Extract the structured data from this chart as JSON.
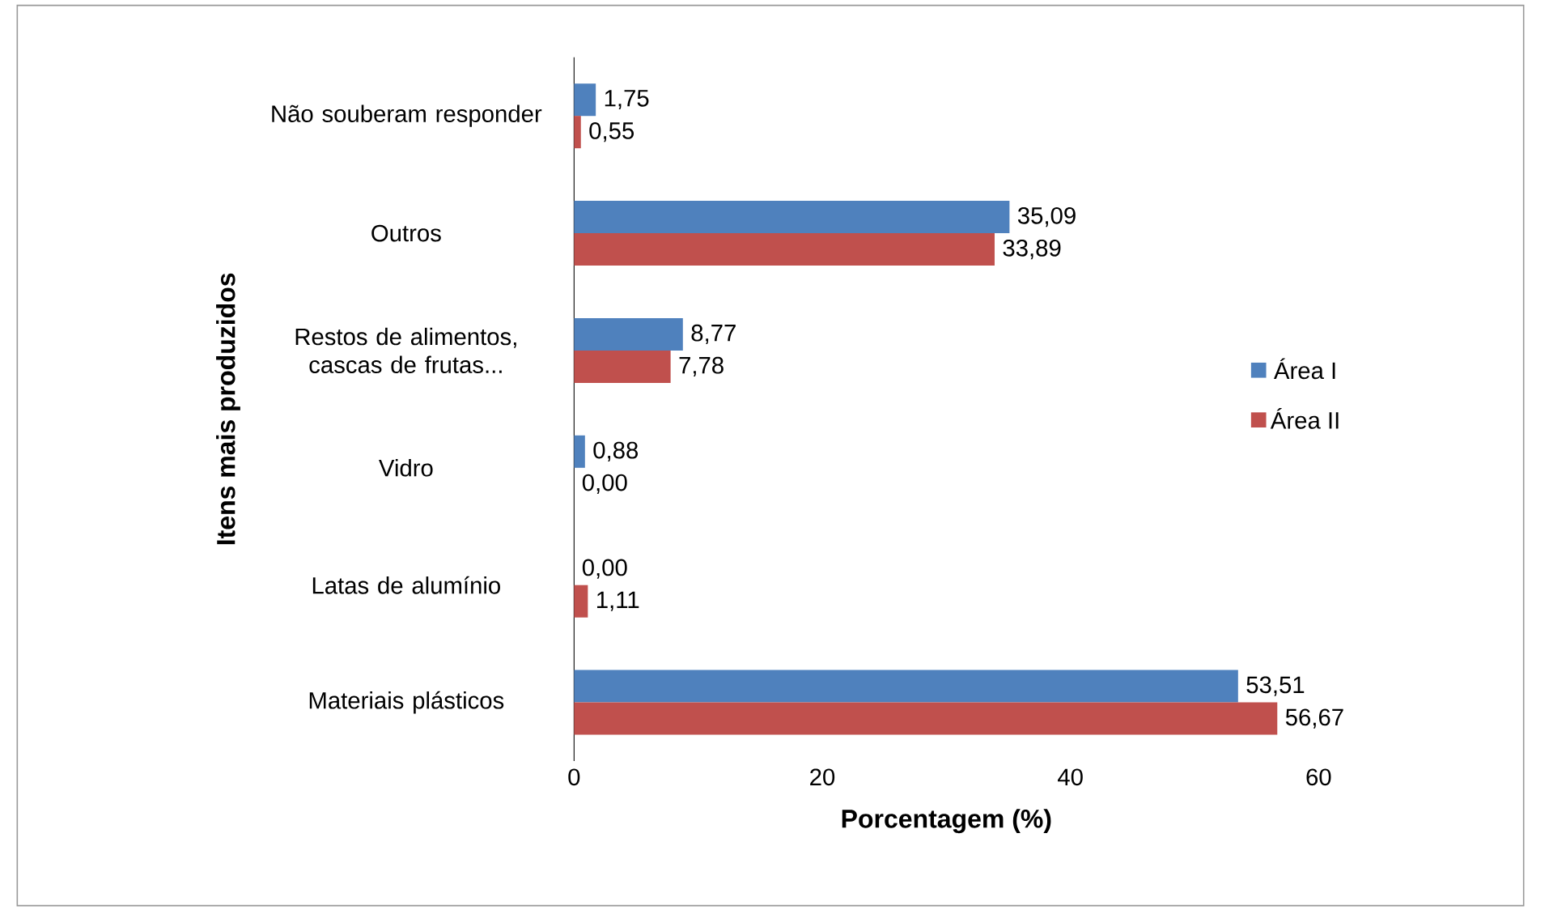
{
  "chart_data": {
    "type": "bar",
    "orientation": "horizontal",
    "xlabel": "Porcentagem (%)",
    "ylabel": "Itens mais produzidos",
    "categories": [
      "Não souberam responder",
      "Outros",
      "Restos de alimentos, cascas de frutas...",
      "Vidro",
      "Latas de alumínio",
      "Materiais plásticos"
    ],
    "series": [
      {
        "name": "Área I",
        "color": "#4f81bd",
        "values": [
          1.75,
          35.09,
          8.77,
          0.88,
          0.0,
          53.51
        ],
        "value_labels": [
          "1,75",
          "35,09",
          "8,77",
          "0,88",
          "0,00",
          "53,51"
        ]
      },
      {
        "name": "Área II",
        "color": "#c0504d",
        "values": [
          0.55,
          33.89,
          7.78,
          0.0,
          1.11,
          56.67
        ],
        "value_labels": [
          "0,55",
          "33,89",
          "7,78",
          "0,00",
          "1,11",
          "56,67"
        ]
      }
    ],
    "xlim": [
      0,
      60
    ],
    "xticks": [
      0,
      20,
      40,
      60
    ],
    "grid": false,
    "legend": "right"
  }
}
